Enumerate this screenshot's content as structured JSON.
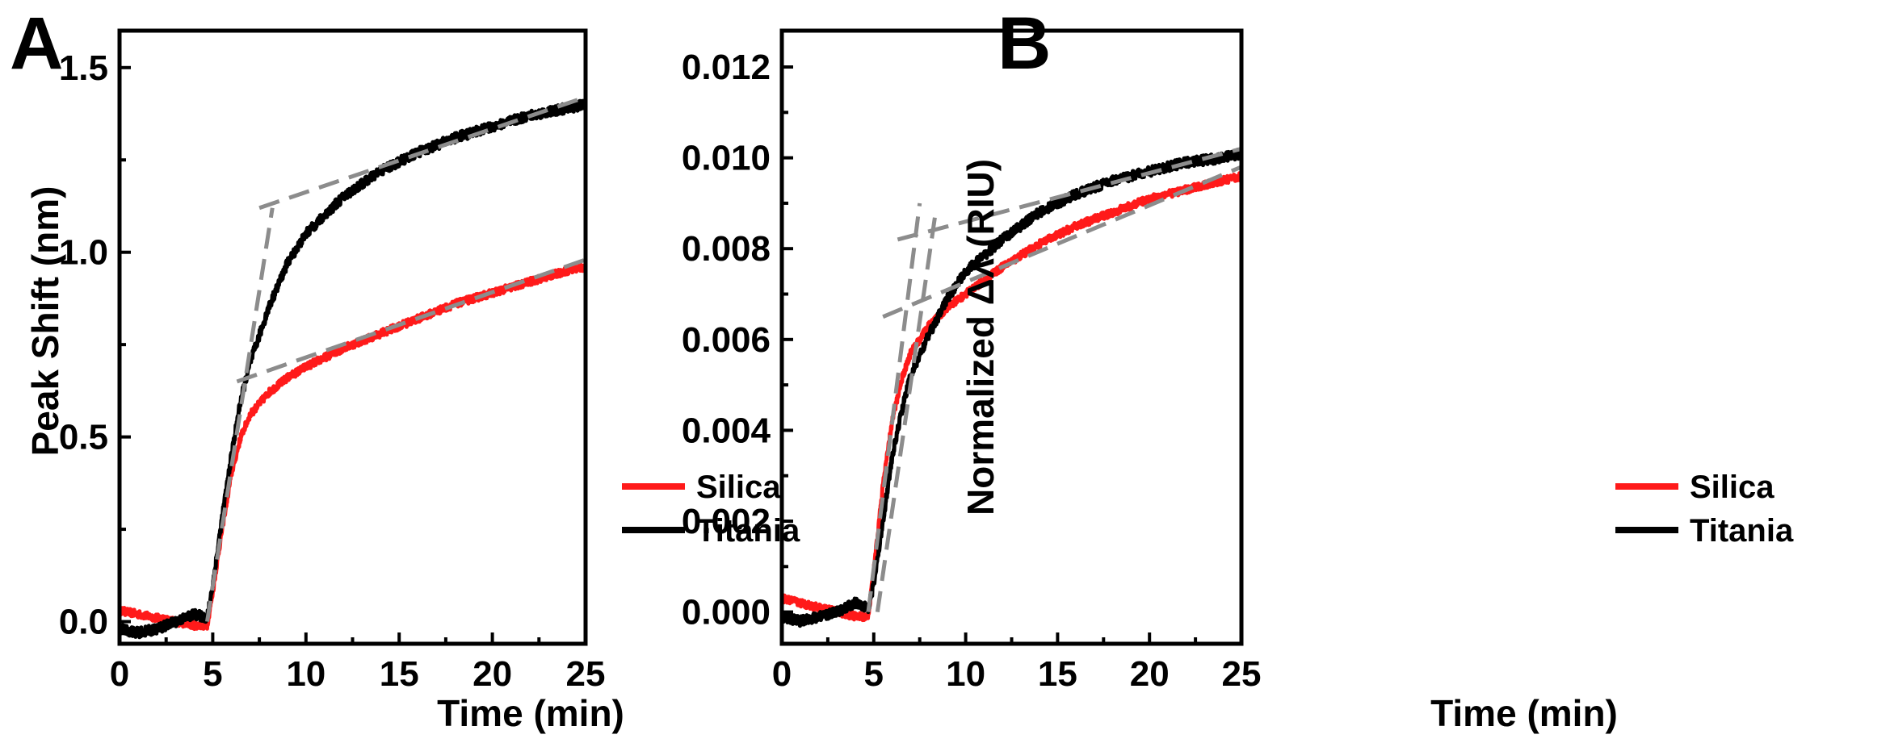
{
  "colors": {
    "silica": "#ff1a1a",
    "titania": "#000000",
    "fit": "#8c8c8c",
    "axis": "#000000"
  },
  "chart_data": [
    {
      "panel": "A",
      "type": "line",
      "title": "",
      "xlabel": "Time (min)",
      "ylabel": "Peak Shift (nm)",
      "xlim": [
        0,
        25
      ],
      "ylim": [
        -0.06,
        1.6
      ],
      "xticks": [
        0,
        5,
        10,
        15,
        20,
        25
      ],
      "xtick_labels": [
        "0",
        "5",
        "10",
        "15",
        "20",
        "25"
      ],
      "yticks": [
        0.0,
        0.5,
        1.0,
        1.5
      ],
      "ytick_labels": [
        "0.0",
        "0.5",
        "1.0",
        "1.5"
      ],
      "legend": "bottom-right",
      "series": [
        {
          "name": "Silica",
          "color": "#ff1a1a",
          "x": [
            0,
            1,
            2,
            3,
            4,
            4.7,
            5,
            5.5,
            6,
            6.5,
            7,
            8,
            9,
            10,
            12,
            14,
            16,
            18,
            20,
            22,
            24,
            25
          ],
          "y": [
            0.03,
            0.02,
            0.01,
            0.0,
            -0.01,
            -0.01,
            0.08,
            0.25,
            0.4,
            0.5,
            0.56,
            0.62,
            0.66,
            0.69,
            0.74,
            0.78,
            0.82,
            0.86,
            0.89,
            0.92,
            0.95,
            0.96
          ]
        },
        {
          "name": "Titania",
          "color": "#000000",
          "x": [
            0,
            1,
            2,
            3,
            4,
            4.7,
            5,
            5.5,
            6,
            6.5,
            7,
            8,
            9,
            10,
            12,
            14,
            16,
            18,
            20,
            22,
            24,
            25
          ],
          "y": [
            -0.02,
            -0.03,
            -0.02,
            0.0,
            0.02,
            0.01,
            0.1,
            0.28,
            0.45,
            0.6,
            0.7,
            0.85,
            0.97,
            1.05,
            1.15,
            1.22,
            1.27,
            1.31,
            1.34,
            1.37,
            1.39,
            1.4
          ]
        }
      ],
      "fit_lines": [
        {
          "x": [
            4.7,
            8.2
          ],
          "y": [
            0.0,
            1.12
          ]
        },
        {
          "x": [
            7.5,
            25
          ],
          "y": [
            1.12,
            1.42
          ]
        },
        {
          "x": [
            6.3,
            25
          ],
          "y": [
            0.65,
            0.98
          ]
        }
      ]
    },
    {
      "panel": "B",
      "type": "line",
      "title": "",
      "xlabel": "Time (min)",
      "ylabel": "Normalized Δλ (RIU)",
      "xlim": [
        0,
        25
      ],
      "ylim": [
        -0.0007,
        0.0128
      ],
      "xticks": [
        0,
        5,
        10,
        15,
        20,
        25
      ],
      "xtick_labels": [
        "0",
        "5",
        "10",
        "15",
        "20",
        "25"
      ],
      "yticks": [
        0.0,
        0.002,
        0.004,
        0.006,
        0.008,
        0.01,
        0.012
      ],
      "ytick_labels": [
        "0.000",
        "0.002",
        "0.004",
        "0.006",
        "0.008",
        "0.010",
        "0.012"
      ],
      "legend": "bottom-right",
      "series": [
        {
          "name": "Silica",
          "color": "#ff1a1a",
          "x": [
            0,
            1,
            2,
            3,
            4,
            4.7,
            5,
            5.5,
            6,
            6.5,
            7,
            8,
            9,
            10,
            12,
            14,
            16,
            18,
            20,
            22,
            24,
            25
          ],
          "y": [
            0.0003,
            0.0002,
            0.0001,
            0.0,
            -0.0001,
            -0.0001,
            0.0009,
            0.0028,
            0.0042,
            0.0051,
            0.0057,
            0.0063,
            0.0067,
            0.007,
            0.0076,
            0.0081,
            0.0085,
            0.0088,
            0.0091,
            0.0093,
            0.0095,
            0.0096
          ]
        },
        {
          "name": "Titania",
          "color": "#000000",
          "x": [
            0,
            1,
            2,
            3,
            4,
            4.7,
            5,
            5.5,
            6,
            6.5,
            7,
            8,
            9,
            10,
            12,
            14,
            16,
            18,
            20,
            22,
            24,
            25
          ],
          "y": [
            -0.0001,
            -0.0002,
            -0.0001,
            0.0,
            0.0002,
            0.0001,
            0.0006,
            0.002,
            0.0034,
            0.0044,
            0.0052,
            0.0061,
            0.0069,
            0.0075,
            0.0082,
            0.0088,
            0.0092,
            0.0095,
            0.0097,
            0.0099,
            0.01,
            0.0101
          ]
        }
      ],
      "fit_lines": [
        {
          "x": [
            4.7,
            7.5
          ],
          "y": [
            0.0,
            0.009
          ]
        },
        {
          "x": [
            5.2,
            8.4
          ],
          "y": [
            0.0,
            0.0089
          ]
        },
        {
          "x": [
            6.3,
            25
          ],
          "y": [
            0.0082,
            0.0102
          ]
        },
        {
          "x": [
            5.5,
            25
          ],
          "y": [
            0.0065,
            0.0098
          ]
        }
      ]
    }
  ]
}
